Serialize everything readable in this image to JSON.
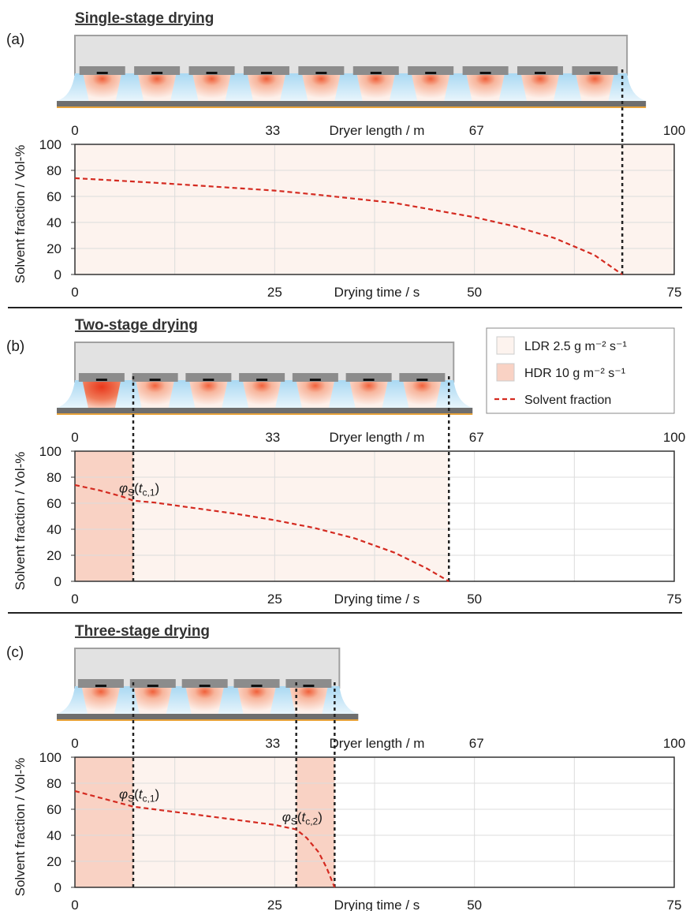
{
  "chart_data": [
    {
      "type": "line",
      "panel": "(a)",
      "title": "Single-stage drying",
      "xlabel": "Drying time / s",
      "x2label": "Dryer length / m",
      "ylabel": "Solvent fraction / Vol-%",
      "xlim": [
        0,
        75
      ],
      "xticks": [
        0,
        25,
        50,
        75
      ],
      "xminorticks": [
        12.5,
        37.5,
        62.5
      ],
      "x2lim": [
        0,
        100
      ],
      "x2ticks": [
        0,
        33,
        67,
        100
      ],
      "ylim": [
        0,
        100
      ],
      "yticks": [
        0,
        20,
        40,
        60,
        80,
        100
      ],
      "grid": true,
      "stages": [
        {
          "x0": 0,
          "x1": 75,
          "color": "#fdf3ee"
        }
      ],
      "boundaries": [
        68.5
      ],
      "series": [
        {
          "name": "Solvent fraction",
          "color": "#d42a20",
          "x": [
            0,
            10,
            20,
            25,
            30,
            40,
            50,
            55,
            60,
            65,
            68.5
          ],
          "values": [
            74,
            70.5,
            66.5,
            64.5,
            61.5,
            55,
            44,
            37,
            28,
            15,
            0
          ]
        }
      ],
      "annotations": []
    },
    {
      "type": "line",
      "panel": "(b)",
      "title": "Two-stage drying",
      "xlabel": "Drying time / s",
      "x2label": "Dryer length / m",
      "ylabel": "Solvent fraction / Vol-%",
      "xlim": [
        0,
        75
      ],
      "xticks": [
        0,
        25,
        50,
        75
      ],
      "xminorticks": [
        12.5,
        37.5,
        62.5
      ],
      "x2lim": [
        0,
        100
      ],
      "x2ticks": [
        0,
        33,
        67,
        100
      ],
      "ylim": [
        0,
        100
      ],
      "yticks": [
        0,
        20,
        40,
        60,
        80,
        100
      ],
      "grid": true,
      "stages": [
        {
          "x0": 0,
          "x1": 7.3,
          "color": "#f9d2c4"
        },
        {
          "x0": 7.3,
          "x1": 46.8,
          "color": "#fdf3ee"
        }
      ],
      "boundaries": [
        7.3,
        46.8
      ],
      "series": [
        {
          "name": "Solvent fraction",
          "color": "#d42a20",
          "x": [
            0,
            3,
            6,
            7.3,
            10,
            20,
            25,
            30,
            35,
            40,
            44,
            46.8
          ],
          "values": [
            74,
            70,
            65,
            62,
            60.5,
            52,
            47,
            41,
            33,
            22,
            10,
            0
          ]
        }
      ],
      "annotations": [
        {
          "x": 7.3,
          "y": 62,
          "parts": [
            {
              "text": "φ",
              "style": "italic"
            },
            {
              "text": "S",
              "style": "sub"
            },
            {
              "text": "(",
              "style": "normal"
            },
            {
              "text": "t",
              "style": "italic"
            },
            {
              "text": "c,1",
              "style": "sub"
            },
            {
              "text": ")",
              "style": "normal"
            }
          ]
        }
      ],
      "legend_loc": "upper right",
      "legend": [
        {
          "label": "LDR 2.5 g m⁻² s⁻¹",
          "color": "#fdf3ee",
          "kind": "patch"
        },
        {
          "label": "HDR 10 g m⁻² s⁻¹",
          "color": "#f9d2c4",
          "kind": "patch"
        },
        {
          "label": "Solvent fraction",
          "color": "#d42a20",
          "kind": "dashed-line"
        }
      ]
    },
    {
      "type": "line",
      "panel": "(c)",
      "title": "Three-stage drying",
      "xlabel": "Drying time / s",
      "x2label": "Dryer length / m",
      "ylabel": "Solvent fraction / Vol-%",
      "xlim": [
        0,
        75
      ],
      "xticks": [
        0,
        25,
        50,
        75
      ],
      "xminorticks": [
        12.5,
        37.5,
        62.5
      ],
      "x2lim": [
        0,
        100
      ],
      "x2ticks": [
        0,
        33,
        67,
        100
      ],
      "ylim": [
        0,
        100
      ],
      "yticks": [
        0,
        20,
        40,
        60,
        80,
        100
      ],
      "grid": true,
      "stages": [
        {
          "x0": 0,
          "x1": 7.3,
          "color": "#f9d2c4"
        },
        {
          "x0": 7.3,
          "x1": 27.7,
          "color": "#fdf3ee"
        },
        {
          "x0": 27.7,
          "x1": 32.5,
          "color": "#f9d2c4"
        }
      ],
      "boundaries": [
        7.3,
        27.7,
        32.5
      ],
      "series": [
        {
          "name": "Solvent fraction",
          "color": "#d42a20",
          "x": [
            0,
            7.3,
            15,
            20,
            25,
            27.7,
            29,
            30.5,
            31.5,
            32.5
          ],
          "values": [
            74,
            62,
            56,
            52,
            48,
            44.5,
            38,
            27,
            15,
            0
          ]
        }
      ],
      "annotations": [
        {
          "x": 7.3,
          "y": 62,
          "parts": [
            {
              "text": "φ",
              "style": "italic"
            },
            {
              "text": "S",
              "style": "sub"
            },
            {
              "text": "(",
              "style": "normal"
            },
            {
              "text": "t",
              "style": "italic"
            },
            {
              "text": "c,1",
              "style": "sub"
            },
            {
              "text": ")",
              "style": "normal"
            }
          ]
        },
        {
          "x": 27.7,
          "y": 44.5,
          "parts": [
            {
              "text": "φ",
              "style": "italic"
            },
            {
              "text": "S",
              "style": "sub"
            },
            {
              "text": "(",
              "style": "normal"
            },
            {
              "text": "t",
              "style": "italic"
            },
            {
              "text": "c,2",
              "style": "sub"
            },
            {
              "text": ")",
              "style": "normal"
            }
          ]
        }
      ]
    }
  ]
}
